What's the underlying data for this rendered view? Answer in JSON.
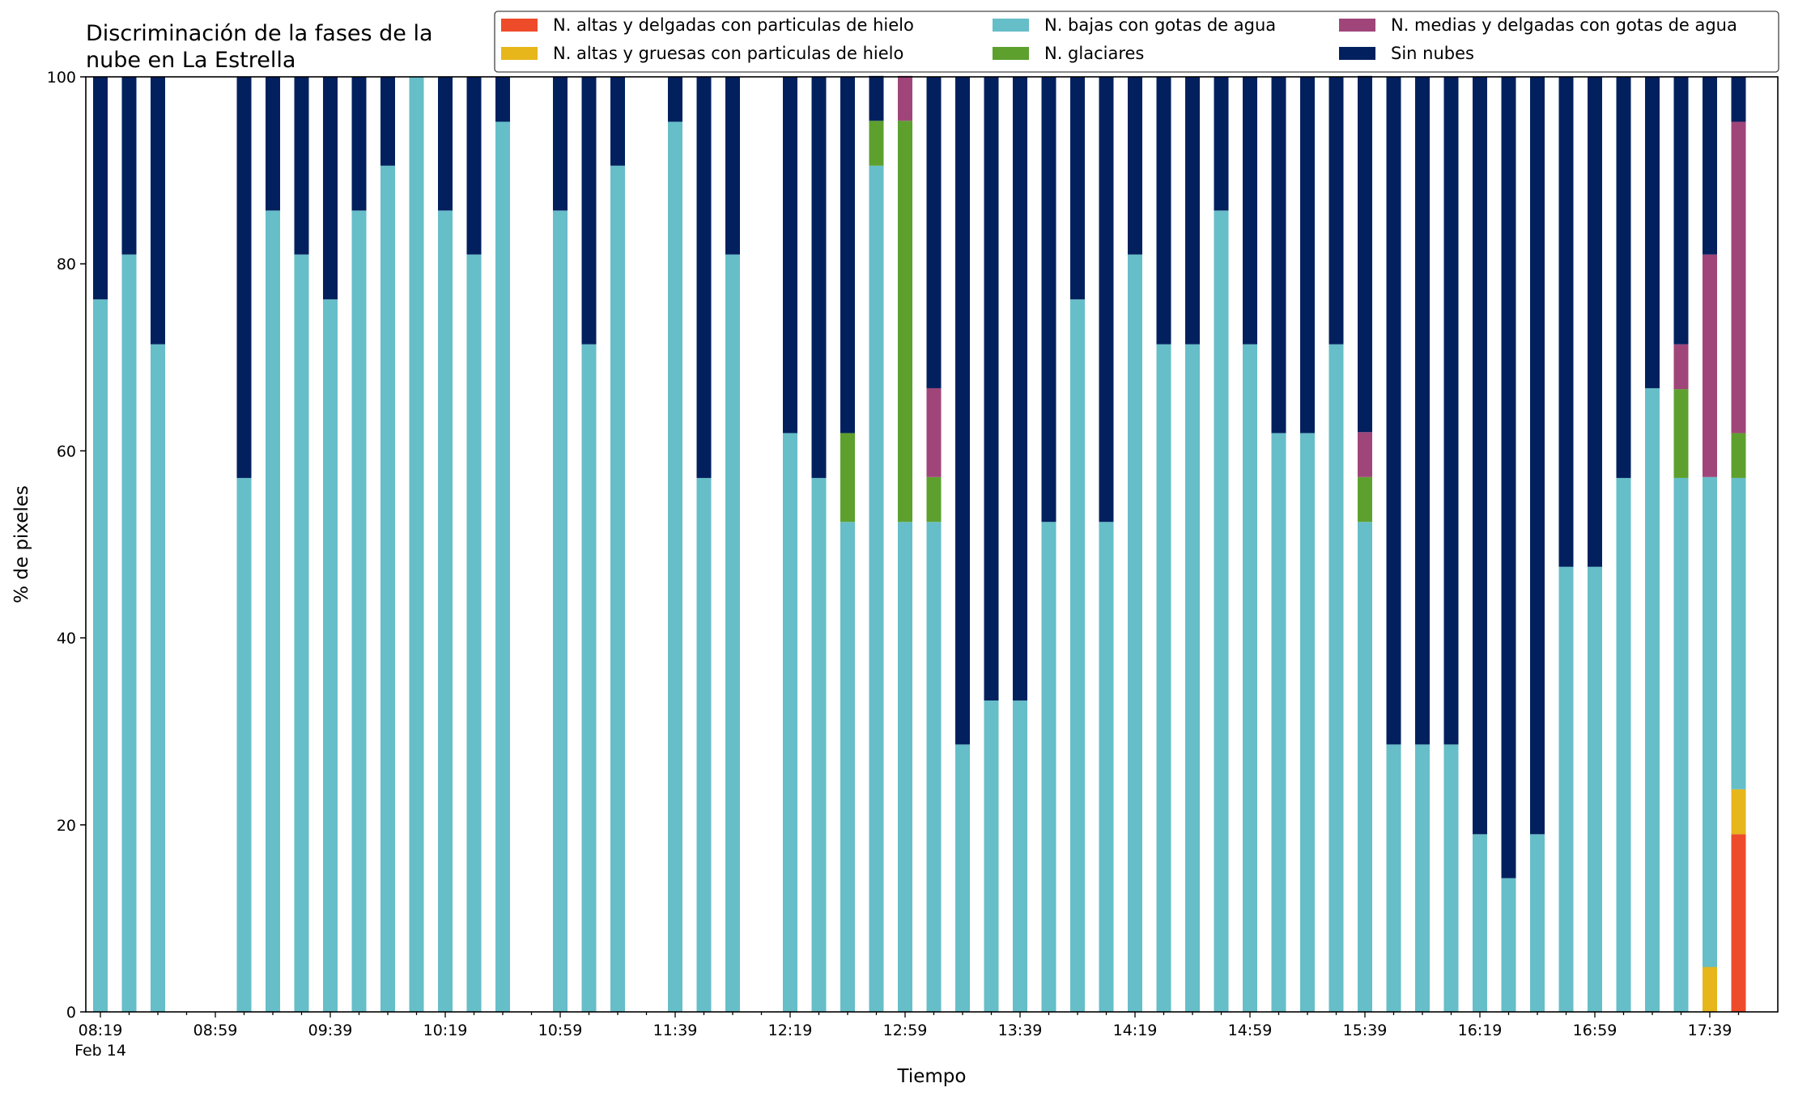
{
  "chart_data": {
    "type": "bar",
    "stacked": true,
    "title": "Discriminación de la fases de la nube en La Estrella",
    "title_lines": [
      "Discriminación de la fases de la",
      "nube en La Estrella"
    ],
    "xlabel": "Tiempo",
    "ylabel": "% de pixeles",
    "ylim": [
      0,
      100
    ],
    "yticks": [
      0,
      20,
      40,
      60,
      80,
      100
    ],
    "x_tick_labels": [
      "08:19",
      "08:59",
      "09:39",
      "10:19",
      "10:59",
      "11:39",
      "12:19",
      "12:59",
      "13:39",
      "14:19",
      "14:59",
      "15:39",
      "16:19",
      "16:59",
      "17:39"
    ],
    "x_date_label": "Feb 14",
    "grid": false,
    "legend_position": "top-right",
    "categories": [
      "08:19",
      "08:29",
      "08:39",
      "08:49",
      "08:59",
      "09:09",
      "09:19",
      "09:29",
      "09:39",
      "09:49",
      "09:59",
      "10:09",
      "10:19",
      "10:29",
      "10:39",
      "10:49",
      "10:59",
      "11:09",
      "11:19",
      "11:29",
      "11:39",
      "11:49",
      "11:59",
      "12:09",
      "12:19",
      "12:29",
      "12:39",
      "12:49",
      "12:59",
      "13:09",
      "13:19",
      "13:29",
      "13:39",
      "13:49",
      "13:59",
      "14:09",
      "14:19",
      "14:29",
      "14:39",
      "14:49",
      "14:59",
      "15:09",
      "15:19",
      "15:29",
      "15:39",
      "15:49",
      "15:59",
      "16:09",
      "16:19",
      "16:29",
      "16:39",
      "16:49",
      "16:59",
      "17:09",
      "17:19",
      "17:29",
      "17:39",
      "17:49"
    ],
    "series": [
      {
        "name": "N. altas y delgadas con particulas de hielo",
        "color": "#ee4b2b",
        "values": [
          0,
          0,
          0,
          null,
          null,
          0,
          0,
          0,
          0,
          0,
          0,
          0,
          0,
          0,
          0,
          null,
          0,
          0,
          0,
          null,
          0,
          0,
          0,
          null,
          0,
          0,
          0,
          0,
          0,
          0,
          0,
          0,
          0,
          0,
          0,
          0,
          0,
          0,
          0,
          0,
          0,
          0,
          0,
          0,
          0,
          0,
          0,
          0,
          0,
          0,
          0,
          0,
          0,
          0,
          0,
          0,
          0,
          19.0
        ]
      },
      {
        "name": "N. altas y gruesas con particulas de hielo",
        "color": "#e6b61a",
        "values": [
          0,
          0,
          0,
          null,
          null,
          0,
          0,
          0,
          0,
          0,
          0,
          0,
          0,
          0,
          0,
          null,
          0,
          0,
          0,
          null,
          0,
          0,
          0,
          null,
          0,
          0,
          0,
          0,
          0,
          0,
          0,
          0,
          0,
          0,
          0,
          0,
          0,
          0,
          0,
          0,
          0,
          0,
          0,
          0,
          0,
          0,
          0,
          0,
          0,
          0,
          0,
          0,
          0,
          0,
          0,
          0,
          4.8,
          4.8
        ]
      },
      {
        "name": "N. bajas con gotas de agua",
        "color": "#66bec8",
        "values": [
          76.2,
          81.0,
          71.4,
          null,
          null,
          57.1,
          85.7,
          81.0,
          76.2,
          85.7,
          90.5,
          100,
          85.7,
          81.0,
          95.2,
          null,
          85.7,
          71.4,
          90.5,
          null,
          95.2,
          57.1,
          81.0,
          null,
          61.9,
          57.1,
          52.4,
          90.5,
          52.4,
          52.4,
          28.6,
          33.3,
          33.3,
          52.4,
          76.2,
          52.4,
          81.0,
          71.4,
          71.4,
          85.7,
          71.4,
          61.9,
          61.9,
          71.4,
          52.4,
          28.6,
          28.6,
          28.6,
          19.0,
          14.3,
          19.0,
          47.6,
          47.6,
          57.1,
          66.7,
          57.1,
          52.4,
          33.3
        ]
      },
      {
        "name": "N. glaciares",
        "color": "#5da02e",
        "values": [
          0,
          0,
          0,
          null,
          null,
          0,
          0,
          0,
          0,
          0,
          0,
          0,
          0,
          0,
          0,
          null,
          0,
          0,
          0,
          null,
          0,
          0,
          0,
          null,
          0,
          0,
          9.5,
          4.8,
          42.9,
          4.8,
          0,
          0,
          0,
          0,
          0,
          0,
          0,
          0,
          0,
          0,
          0,
          0,
          0,
          0,
          4.8,
          0,
          0,
          0,
          0,
          0,
          0,
          0,
          0,
          0,
          0,
          9.5,
          0,
          4.8
        ]
      },
      {
        "name": "N. medias y delgadas con gotas de agua",
        "color": "#a0457a",
        "values": [
          0,
          0,
          0,
          null,
          null,
          0,
          0,
          0,
          0,
          0,
          0,
          0,
          0,
          0,
          0,
          null,
          0,
          0,
          0,
          null,
          0,
          0,
          0,
          null,
          0,
          0,
          0,
          0,
          4.8,
          9.5,
          0,
          0,
          0,
          0,
          0,
          0,
          0,
          0,
          0,
          0,
          0,
          0,
          0,
          0,
          4.8,
          0,
          0,
          0,
          0,
          0,
          0,
          0,
          0,
          0,
          0,
          4.8,
          23.8,
          33.3
        ]
      },
      {
        "name": "Sin nubes",
        "color": "#03205e",
        "values": [
          23.8,
          19.0,
          28.6,
          null,
          null,
          42.9,
          14.3,
          19.0,
          23.8,
          14.3,
          9.5,
          0,
          14.3,
          19.0,
          4.8,
          null,
          14.3,
          28.6,
          9.5,
          null,
          4.8,
          42.9,
          19.0,
          null,
          38.1,
          42.9,
          38.1,
          4.8,
          0,
          33.3,
          71.4,
          66.7,
          66.7,
          47.6,
          23.8,
          47.6,
          19.0,
          28.6,
          28.6,
          14.3,
          28.6,
          38.1,
          38.1,
          28.6,
          38.1,
          71.4,
          71.4,
          71.4,
          81.0,
          85.7,
          81.0,
          52.4,
          52.4,
          42.9,
          33.3,
          28.6,
          19.0,
          4.8
        ]
      }
    ]
  }
}
